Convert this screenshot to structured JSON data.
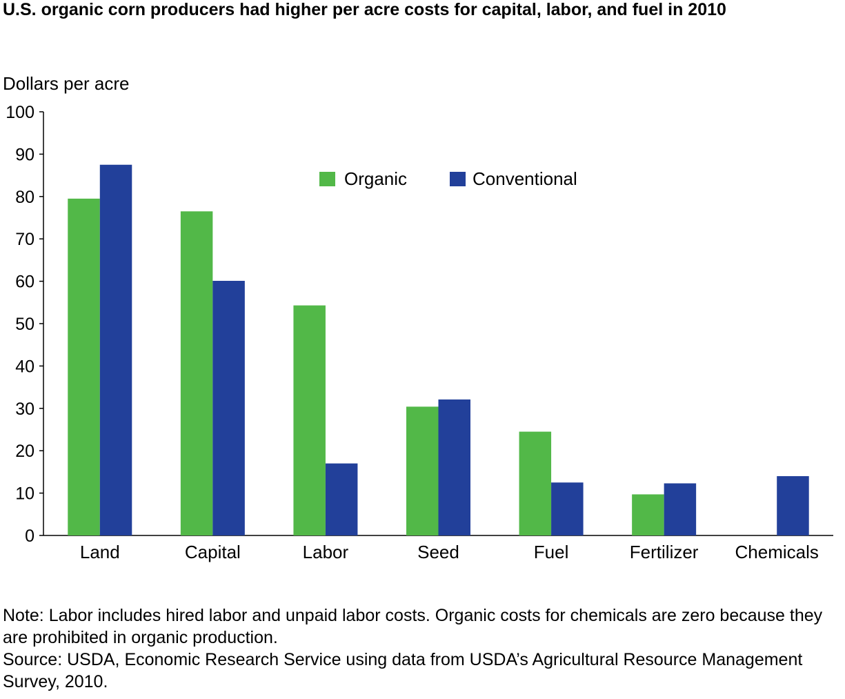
{
  "title": "U.S. organic corn producers had higher per acre costs for capital, labor, and fuel in 2010",
  "note": "Note: Labor includes hired labor and unpaid labor costs. Organic costs for chemicals are zero because they are prohibited in organic production.",
  "source": "Source: USDA, Economic Research Service using data from USDA’s Agricultural Resource Management Survey, 2010.",
  "colors": {
    "organic": "#52b848",
    "conventional": "#22409a",
    "axis": "#000000"
  },
  "chart_data": {
    "type": "bar",
    "title": "U.S. organic corn producers had higher per acre costs for capital, labor, and fuel in 2010",
    "ylabel": "Dollars per acre",
    "xlabel": "",
    "ylim": [
      0,
      100
    ],
    "yticks": [
      0,
      10,
      20,
      30,
      40,
      50,
      60,
      70,
      80,
      90,
      100
    ],
    "grid": false,
    "legend_position": "top-center",
    "categories": [
      "Land",
      "Capital",
      "Labor",
      "Seed",
      "Fuel",
      "Fertilizer",
      "Chemicals"
    ],
    "series": [
      {
        "name": "Organic",
        "color": "#52b848",
        "values": [
          79.5,
          76.5,
          54.3,
          30.4,
          24.5,
          9.7,
          0
        ]
      },
      {
        "name": "Conventional",
        "color": "#22409a",
        "values": [
          87.5,
          60.1,
          17.0,
          32.1,
          12.5,
          12.3,
          14.0
        ]
      }
    ]
  }
}
